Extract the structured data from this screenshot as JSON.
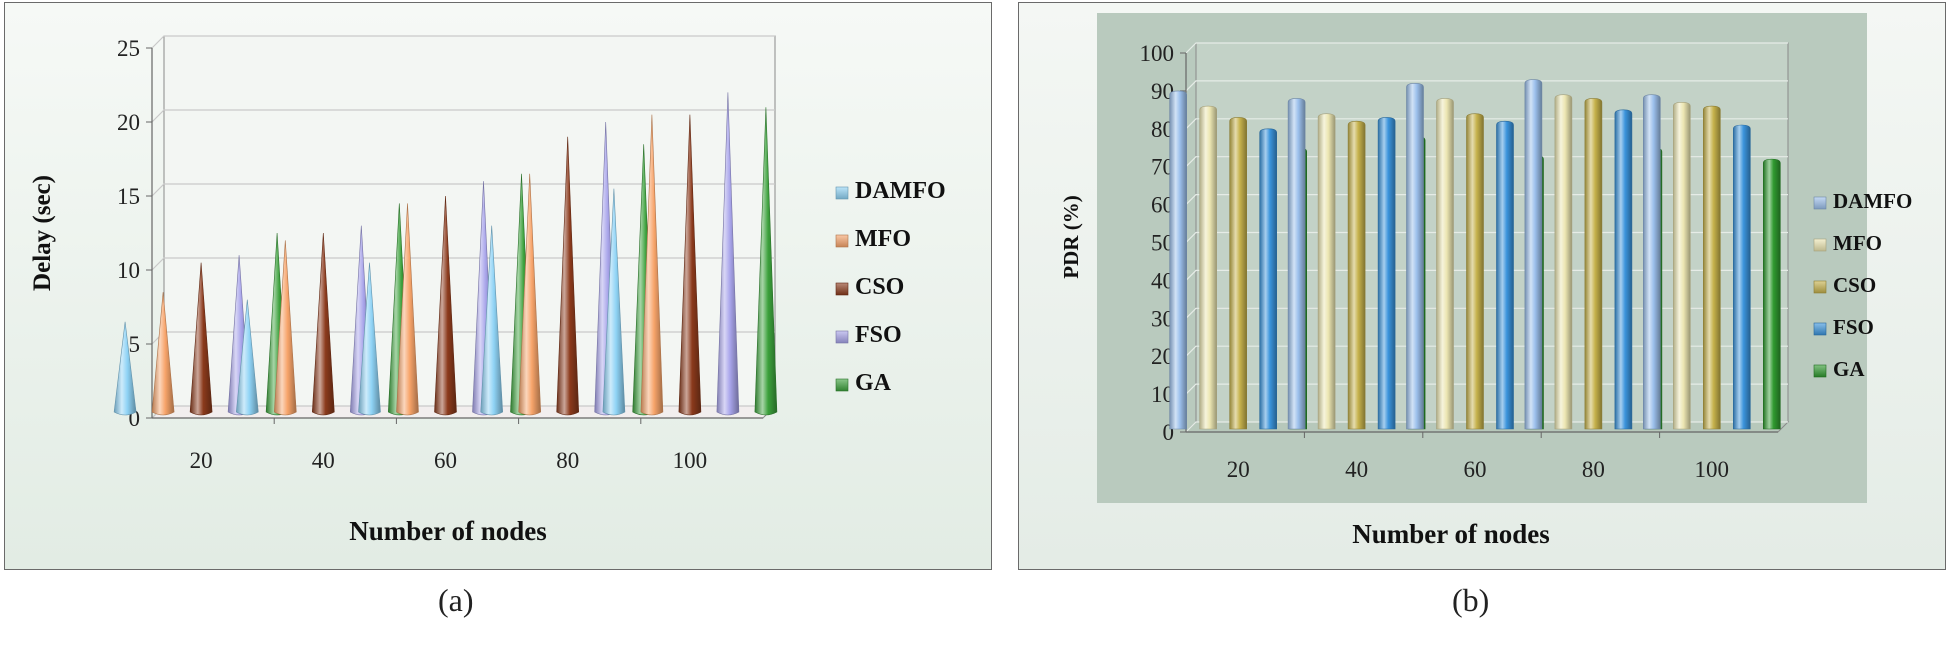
{
  "captions": {
    "a": "(a)",
    "b": "(b)"
  },
  "chart_data": [
    {
      "type": "bar",
      "panel": "(a)",
      "style": "3d-cone",
      "categories": [
        "20",
        "40",
        "60",
        "80",
        "100"
      ],
      "xlabel": "Number of nodes",
      "ylabel": "Delay (sec)",
      "ylim": [
        0,
        25
      ],
      "yticks": [
        0,
        5,
        10,
        15,
        20,
        25
      ],
      "grid": true,
      "legend_position": "right",
      "series": [
        {
          "name": "DAMFO",
          "values": [
            6.5,
            8,
            10.5,
            13,
            15.5
          ],
          "color": "#8fd3f5"
        },
        {
          "name": "MFO",
          "values": [
            8.5,
            12,
            14.5,
            16.5,
            20.5
          ],
          "color": "#f7a46a"
        },
        {
          "name": "CSO",
          "values": [
            10.5,
            12.5,
            15,
            19,
            20.5
          ],
          "color": "#8b3a1c"
        },
        {
          "name": "FSO",
          "values": [
            11,
            13,
            16,
            20,
            22
          ],
          "color": "#a8a4ea"
        },
        {
          "name": "GA",
          "values": [
            12.5,
            14.5,
            16.5,
            18.5,
            21
          ],
          "color": "#3ca13c"
        }
      ]
    },
    {
      "type": "bar",
      "panel": "(b)",
      "style": "3d-cylinder",
      "categories": [
        "20",
        "40",
        "60",
        "80",
        "100"
      ],
      "xlabel": "Number of nodes",
      "ylabel": "PDR (%)",
      "ylim": [
        0,
        100
      ],
      "yticks": [
        0,
        10,
        20,
        30,
        40,
        50,
        60,
        70,
        80,
        90,
        100
      ],
      "grid": true,
      "legend_position": "right",
      "series": [
        {
          "name": "DAMFO",
          "values": [
            90,
            88,
            92,
            93,
            89
          ],
          "color": "#9cc0ec"
        },
        {
          "name": "MFO",
          "values": [
            86,
            84,
            88,
            89,
            87
          ],
          "color": "#ece6b2"
        },
        {
          "name": "CSO",
          "values": [
            83,
            82,
            84,
            88,
            86
          ],
          "color": "#c6b24c"
        },
        {
          "name": "FSO",
          "values": [
            80,
            83,
            82,
            85,
            81
          ],
          "color": "#3b94dc"
        },
        {
          "name": "GA",
          "values": [
            75,
            78,
            73,
            75,
            72
          ],
          "color": "#2f9a2f"
        }
      ]
    }
  ]
}
